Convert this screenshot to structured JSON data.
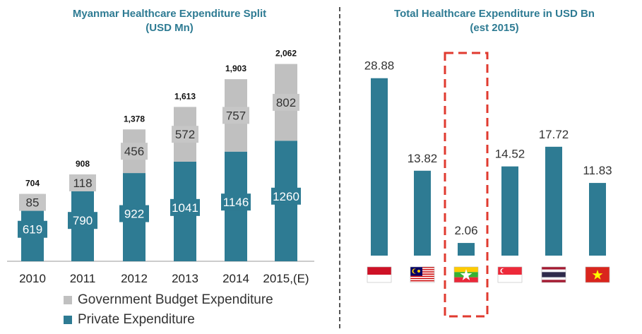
{
  "left_chart": {
    "title_line1": "Myanmar Healthcare Expenditure Split",
    "title_line2": "(USD Mn)"
  },
  "right_chart": {
    "title_line1": "Total Healthcare Expenditure in USD Bn",
    "title_line2": "(est 2015)"
  },
  "legend": {
    "government": "Government Budget Expenditure",
    "private": "Private Expenditure"
  },
  "colors": {
    "private": "#2e7b93",
    "government": "#c0c0c0",
    "title": "#2e7b93",
    "highlight_border": "#e03a2f"
  },
  "chart_data": [
    {
      "type": "bar",
      "stacked": true,
      "title": "Myanmar Healthcare Expenditure Split (USD Mn)",
      "categories": [
        "2010",
        "2011",
        "2012",
        "2013",
        "2014",
        "2015,(E)"
      ],
      "series": [
        {
          "name": "Private Expenditure",
          "values": [
            619,
            790,
            922,
            1041,
            1146,
            1260
          ]
        },
        {
          "name": "Government Budget Expenditure",
          "values": [
            85,
            118,
            456,
            572,
            757,
            802
          ]
        }
      ],
      "totals": [
        "704",
        "908",
        "1,378",
        "1,613",
        "1,903",
        "2,062"
      ],
      "ylim": [
        0,
        2200
      ],
      "legend_position": "bottom-left",
      "grid": false
    },
    {
      "type": "bar",
      "title": "Total Healthcare Expenditure in USD Bn (est 2015)",
      "categories": [
        "indonesia-flag",
        "malaysia-flag",
        "myanmar-flag",
        "singapore-flag",
        "thailand-flag",
        "vietnam-flag"
      ],
      "values": [
        28.88,
        13.82,
        2.06,
        14.52,
        17.72,
        11.83
      ],
      "value_labels": [
        "28.88",
        "13.82",
        "2.06",
        "14.52",
        "17.72",
        "11.83"
      ],
      "highlighted_index": 2,
      "ylim": [
        0,
        30
      ],
      "grid": false
    }
  ]
}
